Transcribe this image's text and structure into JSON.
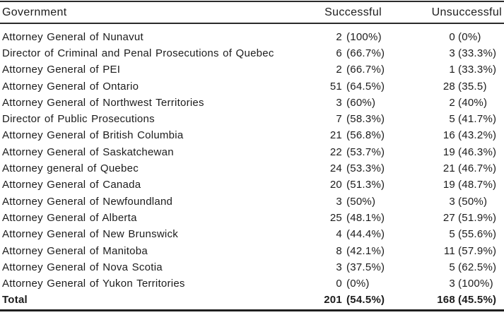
{
  "table": {
    "columns": [
      {
        "key": "government",
        "label": "Government"
      },
      {
        "key": "successful",
        "label": "Successful"
      },
      {
        "key": "unsuccessful",
        "label": "Unsuccessful"
      }
    ],
    "rows": [
      {
        "government": "Attorney General of Nunavut",
        "successful_count": "2",
        "successful_pct": "(100%)",
        "unsuccessful_count": "0",
        "unsuccessful_pct": "(0%)"
      },
      {
        "government": "Director of Criminal and Penal Prosecutions of Quebec",
        "successful_count": "6",
        "successful_pct": "(66.7%)",
        "unsuccessful_count": "3",
        "unsuccessful_pct": "(33.3%)"
      },
      {
        "government": "Attorney General of PEI",
        "successful_count": "2",
        "successful_pct": "(66.7%)",
        "unsuccessful_count": "1",
        "unsuccessful_pct": "(33.3%)"
      },
      {
        "government": "Attorney General of Ontario",
        "successful_count": "51",
        "successful_pct": "(64.5%)",
        "unsuccessful_count": "28",
        "unsuccessful_pct": "(35.5)"
      },
      {
        "government": "Attorney General of Northwest Territories",
        "successful_count": "3",
        "successful_pct": "(60%)",
        "unsuccessful_count": "2",
        "unsuccessful_pct": "(40%)"
      },
      {
        "government": "Director of Public Prosecutions",
        "successful_count": "7",
        "successful_pct": "(58.3%)",
        "unsuccessful_count": "5",
        "unsuccessful_pct": "(41.7%)"
      },
      {
        "government": "Attorney General of British Columbia",
        "successful_count": "21",
        "successful_pct": "(56.8%)",
        "unsuccessful_count": "16",
        "unsuccessful_pct": "(43.2%)"
      },
      {
        "government": "Attorney General of Saskatchewan",
        "successful_count": "22",
        "successful_pct": "(53.7%)",
        "unsuccessful_count": "19",
        "unsuccessful_pct": "(46.3%)"
      },
      {
        "government": "Attorney general of Quebec",
        "successful_count": "24",
        "successful_pct": "(53.3%)",
        "unsuccessful_count": "21",
        "unsuccessful_pct": "(46.7%)"
      },
      {
        "government": "Attorney General of Canada",
        "successful_count": "20",
        "successful_pct": "(51.3%)",
        "unsuccessful_count": "19",
        "unsuccessful_pct": "(48.7%)"
      },
      {
        "government": "Attorney General of Newfoundland",
        "successful_count": "3",
        "successful_pct": "(50%)",
        "unsuccessful_count": "3",
        "unsuccessful_pct": "(50%)"
      },
      {
        "government": "Attorney General of Alberta",
        "successful_count": "25",
        "successful_pct": "(48.1%)",
        "unsuccessful_count": "27",
        "unsuccessful_pct": "(51.9%)"
      },
      {
        "government": "Attorney General of New Brunswick",
        "successful_count": "4",
        "successful_pct": "(44.4%)",
        "unsuccessful_count": "5",
        "unsuccessful_pct": "(55.6%)"
      },
      {
        "government": "Attorney General of Manitoba",
        "successful_count": "8",
        "successful_pct": "(42.1%)",
        "unsuccessful_count": "11",
        "unsuccessful_pct": "(57.9%)"
      },
      {
        "government": "Attorney General of Nova Scotia",
        "successful_count": "3",
        "successful_pct": "(37.5%)",
        "unsuccessful_count": "5",
        "unsuccessful_pct": "(62.5%)"
      },
      {
        "government": "Attorney General of Yukon Territories",
        "successful_count": "0",
        "successful_pct": "(0%)",
        "unsuccessful_count": "3",
        "unsuccessful_pct": "(100%)"
      }
    ],
    "total": {
      "label": "Total",
      "successful_count": "201",
      "successful_pct": "(54.5%)",
      "unsuccessful_count": "168",
      "unsuccessful_pct": "(45.5%)"
    }
  },
  "colors": {
    "text": "#1c1c1c",
    "rule": "#2b2b2b",
    "background": "#ffffff"
  },
  "chart_data": {
    "type": "table",
    "columns": [
      "Government",
      "Successful",
      "Unsuccessful"
    ],
    "rows": [
      [
        "Attorney General of Nunavut",
        "2 (100%)",
        "0 (0%)"
      ],
      [
        "Director of Criminal and Penal Prosecutions of Quebec",
        "6 (66.7%)",
        "3 (33.3%)"
      ],
      [
        "Attorney General of PEI",
        "2 (66.7%)",
        "1 (33.3%)"
      ],
      [
        "Attorney General of Ontario",
        "51 (64.5%)",
        "28 (35.5)"
      ],
      [
        "Attorney General of Northwest Territories",
        "3 (60%)",
        "2 (40%)"
      ],
      [
        "Director of Public Prosecutions",
        "7 (58.3%)",
        "5 (41.7%)"
      ],
      [
        "Attorney General of British Columbia",
        "21 (56.8%)",
        "16 (43.2%)"
      ],
      [
        "Attorney General of Saskatchewan",
        "22 (53.7%)",
        "19 (46.3%)"
      ],
      [
        "Attorney general of Quebec",
        "24 (53.3%)",
        "21 (46.7%)"
      ],
      [
        "Attorney General of Canada",
        "20 (51.3%)",
        "19 (48.7%)"
      ],
      [
        "Attorney General of Newfoundland",
        "3 (50%)",
        "3 (50%)"
      ],
      [
        "Attorney General of Alberta",
        "25 (48.1%)",
        "27 (51.9%)"
      ],
      [
        "Attorney General of New Brunswick",
        "4 (44.4%)",
        "5 (55.6%)"
      ],
      [
        "Attorney General of Manitoba",
        "8 (42.1%)",
        "11 (57.9%)"
      ],
      [
        "Attorney General of Nova Scotia",
        "3 (37.5%)",
        "5 (62.5%)"
      ],
      [
        "Attorney General of Yukon Territories",
        "0 (0%)",
        "3 (100%)"
      ],
      [
        "Total",
        "201 (54.5%)",
        "168 (45.5%)"
      ]
    ]
  }
}
